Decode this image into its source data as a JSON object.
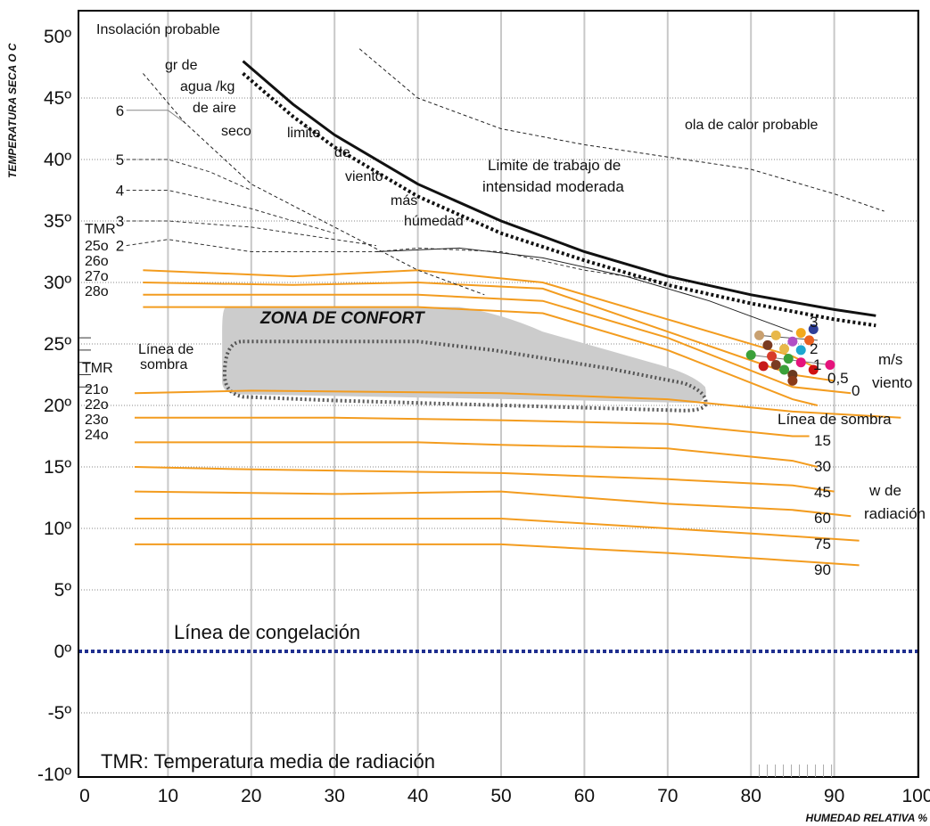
{
  "chart_data": {
    "type": "line",
    "xlabel": "HUMEDAD RELATIVA %",
    "ylabel": "TEMPERATURA SECA O C",
    "xlim": [
      0,
      100
    ],
    "ylim": [
      -10,
      50
    ],
    "grid": true,
    "x_ticks": [
      "0",
      "10",
      "20",
      "30",
      "40",
      "50",
      "60",
      "70",
      "80",
      "90",
      "100"
    ],
    "y_ticks": [
      "-10º",
      "-5º",
      "0º",
      "5º",
      "10º",
      "15º",
      "20º",
      "25º",
      "30º",
      "35º",
      "40º",
      "45º",
      "50º"
    ],
    "colors": {
      "curves": "#f39c1f",
      "comfort_zone": "#cccccc",
      "freeze_line": "#1f2f8f",
      "limits": "#000000"
    },
    "labels": {
      "insolacion": "Insolación probable",
      "gr_line1": "gr de",
      "gr_line2": "agua /kg",
      "gr_line3": "de aire",
      "gr_line4": "seco",
      "limite": "limite",
      "de": "de",
      "viento": "viento",
      "mas": "más",
      "humedad": "húmedad",
      "trabajo1": "Limite de trabajo de",
      "trabajo2": "intensidad moderada",
      "ola": "ola de calor probable",
      "zona": "ZONA DE CONFORT",
      "sombra1": "Línea de",
      "sombra2": "sombra",
      "tmr": "TMR",
      "ms": "m/s",
      "viento2": "viento",
      "linea_sombra": "Línea de sombra",
      "w1": "w de",
      "w2": "radiación",
      "congelacion": "Línea de congelación",
      "footnote": "TMR: Temperatura media de radiación"
    },
    "humidity_curves": [
      {
        "name": "6",
        "points": [
          [
            5,
            44
          ],
          [
            10,
            44
          ],
          [
            12,
            43
          ]
        ]
      },
      {
        "name": "5",
        "points": [
          [
            5,
            40
          ],
          [
            10,
            40
          ],
          [
            15,
            39
          ],
          [
            20,
            37.5
          ]
        ]
      },
      {
        "name": "4",
        "points": [
          [
            5,
            37.5
          ],
          [
            10,
            37.5
          ],
          [
            20,
            36
          ],
          [
            30,
            34
          ]
        ]
      },
      {
        "name": "3",
        "points": [
          [
            5,
            35
          ],
          [
            10,
            35
          ],
          [
            20,
            34.5
          ],
          [
            30,
            33.5
          ],
          [
            35,
            33
          ]
        ]
      },
      {
        "name": "2",
        "points": [
          [
            5,
            33
          ],
          [
            10,
            33.5
          ],
          [
            20,
            32.5
          ],
          [
            30,
            32.5
          ],
          [
            35,
            32.5
          ],
          [
            40,
            32.8
          ],
          [
            50,
            32.5
          ],
          [
            60,
            31
          ],
          [
            70,
            30
          ]
        ]
      }
    ],
    "tmr_high": {
      "labels": [
        "25o",
        "26o",
        "27o",
        "28o"
      ],
      "wind_labels": [
        "3",
        "2",
        "1",
        "0,5",
        "0"
      ]
    },
    "tmr_low": {
      "labels": [
        "21o",
        "22o",
        "23o",
        "24o"
      ]
    },
    "orange_curves": [
      [
        [
          7,
          31
        ],
        [
          25,
          30.5
        ],
        [
          40,
          31
        ],
        [
          55,
          30
        ],
        [
          70,
          27
        ],
        [
          85,
          24
        ],
        [
          88,
          23
        ]
      ],
      [
        [
          7,
          30
        ],
        [
          25,
          29.8
        ],
        [
          40,
          30
        ],
        [
          55,
          29.5
        ],
        [
          70,
          26
        ],
        [
          85,
          22.5
        ],
        [
          90,
          22
        ]
      ],
      [
        [
          7,
          29
        ],
        [
          40,
          29
        ],
        [
          55,
          28.5
        ],
        [
          70,
          25.5
        ],
        [
          85,
          21.5
        ],
        [
          92,
          21
        ]
      ],
      [
        [
          7,
          28
        ],
        [
          40,
          28
        ],
        [
          55,
          27.5
        ],
        [
          70,
          24.5
        ],
        [
          85,
          20.5
        ],
        [
          88,
          20
        ]
      ],
      [
        [
          6,
          21
        ],
        [
          20,
          21.2
        ],
        [
          50,
          21
        ],
        [
          70,
          20.5
        ],
        [
          85,
          19.5
        ],
        [
          98,
          19
        ]
      ],
      [
        [
          6,
          19
        ],
        [
          30,
          19
        ],
        [
          50,
          18.8
        ],
        [
          70,
          18.5
        ],
        [
          85,
          17.5
        ],
        [
          87,
          17.5
        ]
      ],
      [
        [
          6,
          17
        ],
        [
          40,
          17
        ],
        [
          50,
          16.8
        ],
        [
          70,
          16.5
        ],
        [
          85,
          15.5
        ],
        [
          88,
          15
        ]
      ],
      [
        [
          6,
          15
        ],
        [
          20,
          14.8
        ],
        [
          50,
          14.5
        ],
        [
          70,
          14
        ],
        [
          85,
          13.5
        ],
        [
          90,
          13
        ]
      ],
      [
        [
          6,
          13
        ],
        [
          30,
          12.8
        ],
        [
          50,
          13
        ],
        [
          70,
          12
        ],
        [
          85,
          11.5
        ],
        [
          92,
          11
        ]
      ],
      [
        [
          6,
          10.8
        ],
        [
          50,
          10.8
        ],
        [
          70,
          10
        ],
        [
          82,
          9.5
        ],
        [
          93,
          9
        ]
      ],
      [
        [
          6,
          8.7
        ],
        [
          50,
          8.7
        ],
        [
          70,
          8
        ],
        [
          82,
          7.5
        ],
        [
          93,
          7
        ]
      ]
    ],
    "radiation_labels": [
      "15",
      "30",
      "45",
      "60",
      "75",
      "90"
    ],
    "comfort_dots": [
      {
        "rh": 81,
        "t": 25.7,
        "color": "#c8a070"
      },
      {
        "rh": 83,
        "t": 25.7,
        "color": "#e8b84a"
      },
      {
        "rh": 85,
        "t": 25.2,
        "color": "#b14fc5"
      },
      {
        "rh": 86,
        "t": 25.9,
        "color": "#f2a91e"
      },
      {
        "rh": 87.5,
        "t": 26.2,
        "color": "#2e3f9a"
      },
      {
        "rh": 82,
        "t": 24.9,
        "color": "#7a3b23"
      },
      {
        "rh": 84,
        "t": 24.6,
        "color": "#e8b84a"
      },
      {
        "rh": 86,
        "t": 24.5,
        "color": "#1fa7d0"
      },
      {
        "rh": 87,
        "t": 25.3,
        "color": "#ea6020"
      },
      {
        "rh": 80,
        "t": 24.1,
        "color": "#3aa03a"
      },
      {
        "rh": 82.5,
        "t": 24.0,
        "color": "#d83b2b"
      },
      {
        "rh": 84.5,
        "t": 23.8,
        "color": "#3aa03a"
      },
      {
        "rh": 86,
        "t": 23.5,
        "color": "#e5137c"
      },
      {
        "rh": 81.5,
        "t": 23.2,
        "color": "#c71818"
      },
      {
        "rh": 83,
        "t": 23.3,
        "color": "#7a3b23"
      },
      {
        "rh": 84,
        "t": 22.9,
        "color": "#3aa03a"
      },
      {
        "rh": 85,
        "t": 22.5,
        "color": "#6a3a20"
      },
      {
        "rh": 87.5,
        "t": 22.9,
        "color": "#d01010"
      },
      {
        "rh": 89.5,
        "t": 23.3,
        "color": "#e5137c"
      },
      {
        "rh": 85,
        "t": 22.0,
        "color": "#8a3a18"
      }
    ]
  }
}
